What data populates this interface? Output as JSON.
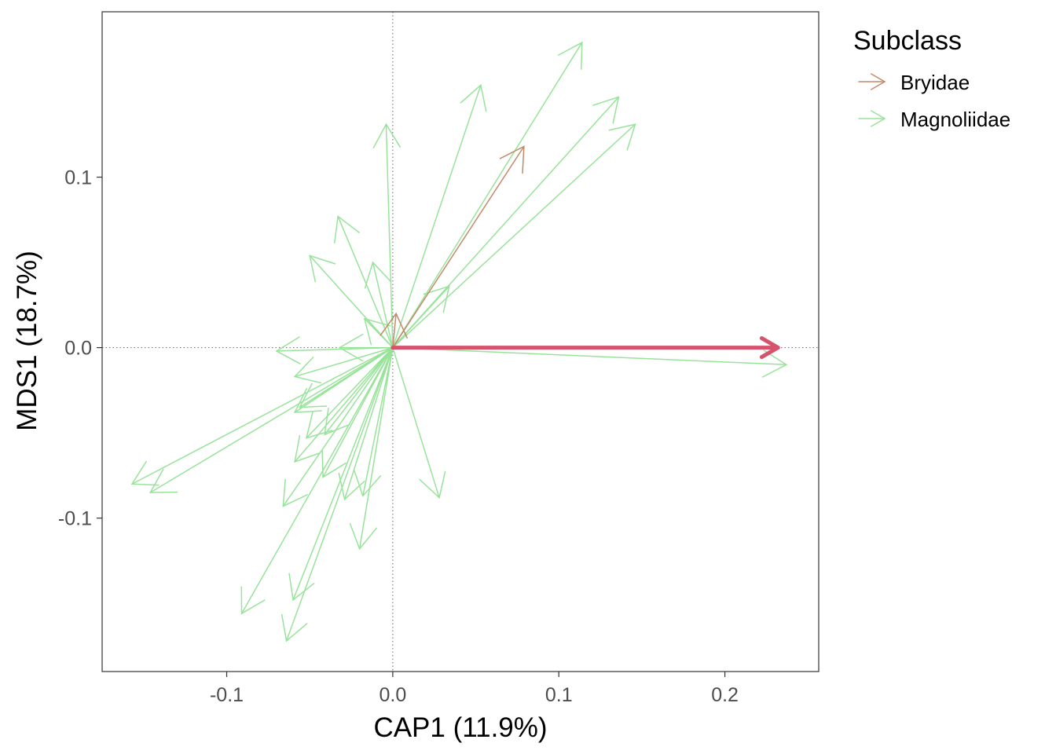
{
  "chart_data": {
    "type": "biplot-arrows",
    "xlabel": "CAP1 (11.9%)",
    "ylabel": "MDS1 (18.7%)",
    "xlim": [
      -0.175,
      0.2565
    ],
    "ylim": [
      -0.19,
      0.197
    ],
    "x_ticks": [
      -0.1,
      0.0,
      0.1,
      0.2
    ],
    "x_tick_labels": [
      "-0.1",
      "0.0",
      "0.1",
      "0.2"
    ],
    "y_ticks": [
      -0.1,
      0.0,
      0.1
    ],
    "y_tick_labels": [
      "-0.1",
      "0.0",
      "0.1"
    ],
    "reference_lines": {
      "x": 0,
      "y": 0,
      "style": "dotted"
    },
    "grid": false,
    "legend": {
      "title": "Subclass",
      "placement": "right",
      "entries": [
        {
          "label": "Bryidae",
          "color": "#C4896A"
        },
        {
          "label": "Magnoliidae",
          "color": "#98E39A"
        }
      ]
    },
    "series": [
      {
        "name": "Bryidae",
        "color": "#C4896A",
        "arrows": [
          {
            "x": 0.079,
            "y": 0.118
          },
          {
            "x": 0.002,
            "y": 0.02
          }
        ]
      },
      {
        "name": "Magnoliidae",
        "color": "#98E39A",
        "arrows": [
          {
            "x": 0.114,
            "y": 0.179
          },
          {
            "x": 0.053,
            "y": 0.154
          },
          {
            "x": 0.136,
            "y": 0.147
          },
          {
            "x": 0.146,
            "y": 0.131
          },
          {
            "x": -0.004,
            "y": 0.131
          },
          {
            "x": -0.033,
            "y": 0.077
          },
          {
            "x": -0.05,
            "y": 0.054
          },
          {
            "x": -0.012,
            "y": 0.05
          },
          {
            "x": 0.034,
            "y": 0.036
          },
          {
            "x": -0.017,
            "y": 0.017
          },
          {
            "x": -0.07,
            "y": -0.002
          },
          {
            "x": -0.032,
            "y": 0.0
          },
          {
            "x": 0.237,
            "y": -0.01
          },
          {
            "x": -0.059,
            "y": -0.017
          },
          {
            "x": -0.056,
            "y": -0.035
          },
          {
            "x": -0.059,
            "y": -0.038
          },
          {
            "x": -0.052,
            "y": -0.053
          },
          {
            "x": -0.041,
            "y": -0.051
          },
          {
            "x": -0.059,
            "y": -0.067
          },
          {
            "x": -0.042,
            "y": -0.076
          },
          {
            "x": -0.157,
            "y": -0.08
          },
          {
            "x": -0.146,
            "y": -0.085
          },
          {
            "x": -0.066,
            "y": -0.093
          },
          {
            "x": -0.029,
            "y": -0.089
          },
          {
            "x": -0.018,
            "y": -0.087
          },
          {
            "x": 0.028,
            "y": -0.088
          },
          {
            "x": -0.02,
            "y": -0.118
          },
          {
            "x": -0.091,
            "y": -0.156
          },
          {
            "x": -0.06,
            "y": -0.148
          },
          {
            "x": -0.064,
            "y": -0.172
          }
        ]
      },
      {
        "name": "",
        "color": "#D6536D",
        "arrows": [
          {
            "x": 0.232,
            "y": 0.0
          }
        ]
      }
    ]
  }
}
